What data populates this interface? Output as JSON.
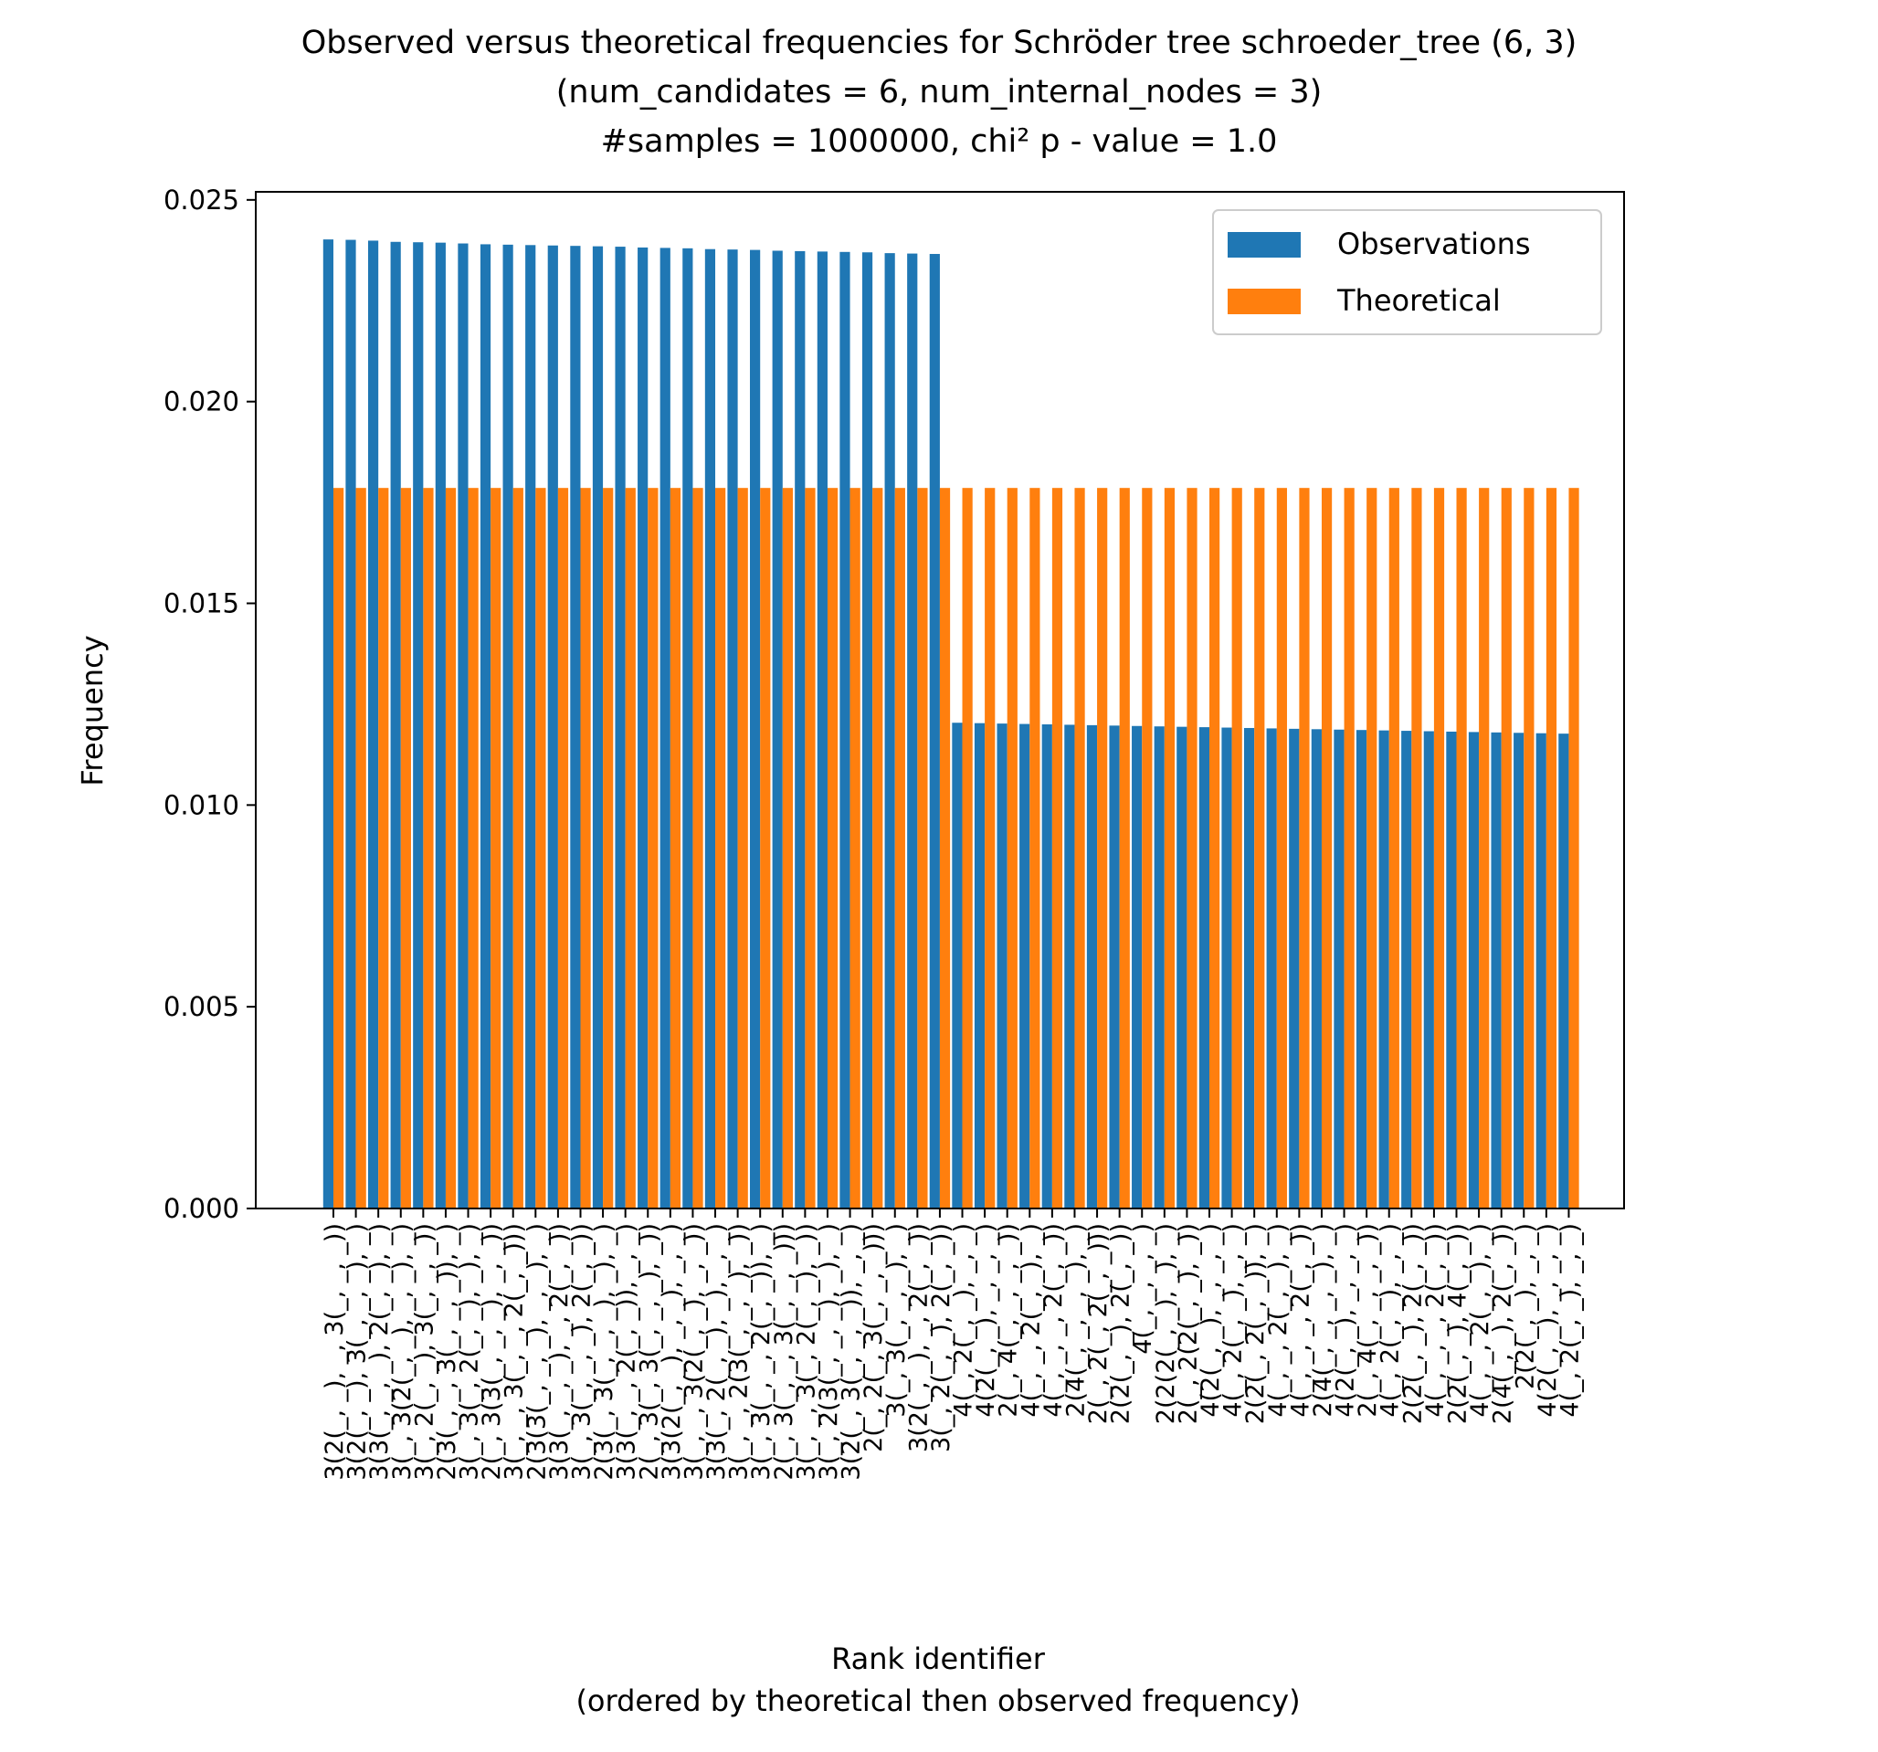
{
  "chart_data": {
    "type": "bar",
    "title_lines": [
      "Observed versus theoretical frequencies for Schröder tree schroeder_tree (6, 3)",
      "(num_candidates = 6, num_internal_nodes = 3)",
      "#samples = 1000000, chi² p - value = 1.0"
    ],
    "xlabel_lines": [
      "Rank identifier",
      "(ordered by theoretical then observed frequency)"
    ],
    "ylabel": "Frequency",
    "ylim": [
      0,
      0.0252
    ],
    "yticks": [
      0.0,
      0.005,
      0.01,
      0.015,
      0.02,
      0.025
    ],
    "ytick_labels": [
      "0.000",
      "0.005",
      "0.010",
      "0.015",
      "0.020",
      "0.025"
    ],
    "legend_position": "top-right",
    "colors": {
      "observations": "#1f77b4",
      "theoretical": "#ff7f0e"
    },
    "categories": [
      "3(2(_, _), _, 3(_, _, _))",
      "3(2(_, _), 3(_, _, _), _)",
      "3(3(_, _, _), 2(_, _), _)",
      "3(_, 3(2(_, _), _, _), _)",
      "3(_, 2(_, _), 3(_, _, _))",
      "2(3(_, _, 3(_, _, _)), _)",
      "3(_, 3(_, 2(_, _), _), _)",
      "2(_, 3(3(_, _, _), _, _))",
      "3(_, _, 3(_, _, 2(_, _)))",
      "2(3(3(_, _, _), _, _), _)",
      "3(3(_, _, _), _, 2(_, _))",
      "3(_, 3(_, _, _), 2(_, _))",
      "2(3(_, 3(_, _, _), _), _)",
      "3(3(_, _, 2(_, _)), _, _)",
      "2(_, 3(_, 3(_, _, _), _))",
      "3(3(2(_, _), _, _), _, _)",
      "3(_, _, 3(2(_, _), _, _))",
      "3(3(_, 2(_, _), _), _, _)",
      "3(_, _, 2(3(_, _, _), _))",
      "3(_, 3(_, _, 2(_, _)), _)",
      "2(_, 3(_, _, 3(_, _, _)))",
      "3(_, _, 3(_, 2(_, _), _))",
      "3(_, 2(3(_, _, _), _), _)",
      "3(2(_, 3(_, _, _)), _, _)",
      "2(_, 2(_, 3(_, _, _)))",
      "3(_, 3(_, _, _), _)",
      "3(2(_, _), _, 2(_, _))",
      "3(_, 2(_, _), 2(_, _))",
      "4(_, 2(_, _), _, _)",
      "4(2(_, _), _, _, _)",
      "2(_, 4(_, _, _, _))",
      "4(_, _, 2(_, _), _)",
      "4(_, _, _, 2(_, _))",
      "2(4(_, _, _, _), _)",
      "2(_, 2(_, 2(_, _)))",
      "2(2(_, _), 2(_, _))",
      "4(_, _, _, _)",
      "2(2(2(_, _), _), _)",
      "2(_, 2(2(_, _), _))",
      "4(2(_, _), _, _, _)",
      "4(_, 2(_, _), _, _)",
      "2(2(_, 2(_, _)), _)",
      "4(_, _, 2(_, _), _)",
      "4(_, _, _, 2(_, _))",
      "2(4(_, _, _, _), _)",
      "4(2(_, _), _, _, _)",
      "2(_, 4(_, _, _, _))",
      "4(_, 2(_, _), _, _)",
      "2(2(_, _), 2(_, _))",
      "4(_, _, _, 2(_, _))",
      "2(2(_, _), 4(_, _))",
      "4(_, _, 2(_, _), _)",
      "2(4(_, _), 2(_, _))",
      "2(2(_, _), _, _)",
      "4(2(_, _), _, _, _)",
      "4(_, 2(_, _), _, _)"
    ],
    "series": [
      {
        "name": "Observations",
        "values": [
          0.02402,
          0.02401,
          0.02399,
          0.02396,
          0.02395,
          0.02394,
          0.02392,
          0.0239,
          0.02389,
          0.02388,
          0.02387,
          0.02386,
          0.02385,
          0.02384,
          0.02382,
          0.02381,
          0.0238,
          0.02378,
          0.02377,
          0.02376,
          0.02374,
          0.02373,
          0.02372,
          0.02371,
          0.0237,
          0.02368,
          0.02367,
          0.02366,
          0.01204,
          0.01203,
          0.01202,
          0.01201,
          0.012,
          0.01199,
          0.01198,
          0.01197,
          0.01196,
          0.01195,
          0.01194,
          0.01193,
          0.01192,
          0.01191,
          0.0119,
          0.01189,
          0.01188,
          0.01187,
          0.01186,
          0.01185,
          0.01184,
          0.01183,
          0.01182,
          0.01181,
          0.0118,
          0.01179,
          0.01178,
          0.01177
        ]
      },
      {
        "name": "Theoretical",
        "values": [
          0.01786,
          0.01786,
          0.01786,
          0.01786,
          0.01786,
          0.01786,
          0.01786,
          0.01786,
          0.01786,
          0.01786,
          0.01786,
          0.01786,
          0.01786,
          0.01786,
          0.01786,
          0.01786,
          0.01786,
          0.01786,
          0.01786,
          0.01786,
          0.01786,
          0.01786,
          0.01786,
          0.01786,
          0.01786,
          0.01786,
          0.01786,
          0.01786,
          0.01786,
          0.01786,
          0.01786,
          0.01786,
          0.01786,
          0.01786,
          0.01786,
          0.01786,
          0.01786,
          0.01786,
          0.01786,
          0.01786,
          0.01786,
          0.01786,
          0.01786,
          0.01786,
          0.01786,
          0.01786,
          0.01786,
          0.01786,
          0.01786,
          0.01786,
          0.01786,
          0.01786,
          0.01786,
          0.01786,
          0.01786,
          0.01786
        ]
      }
    ]
  }
}
